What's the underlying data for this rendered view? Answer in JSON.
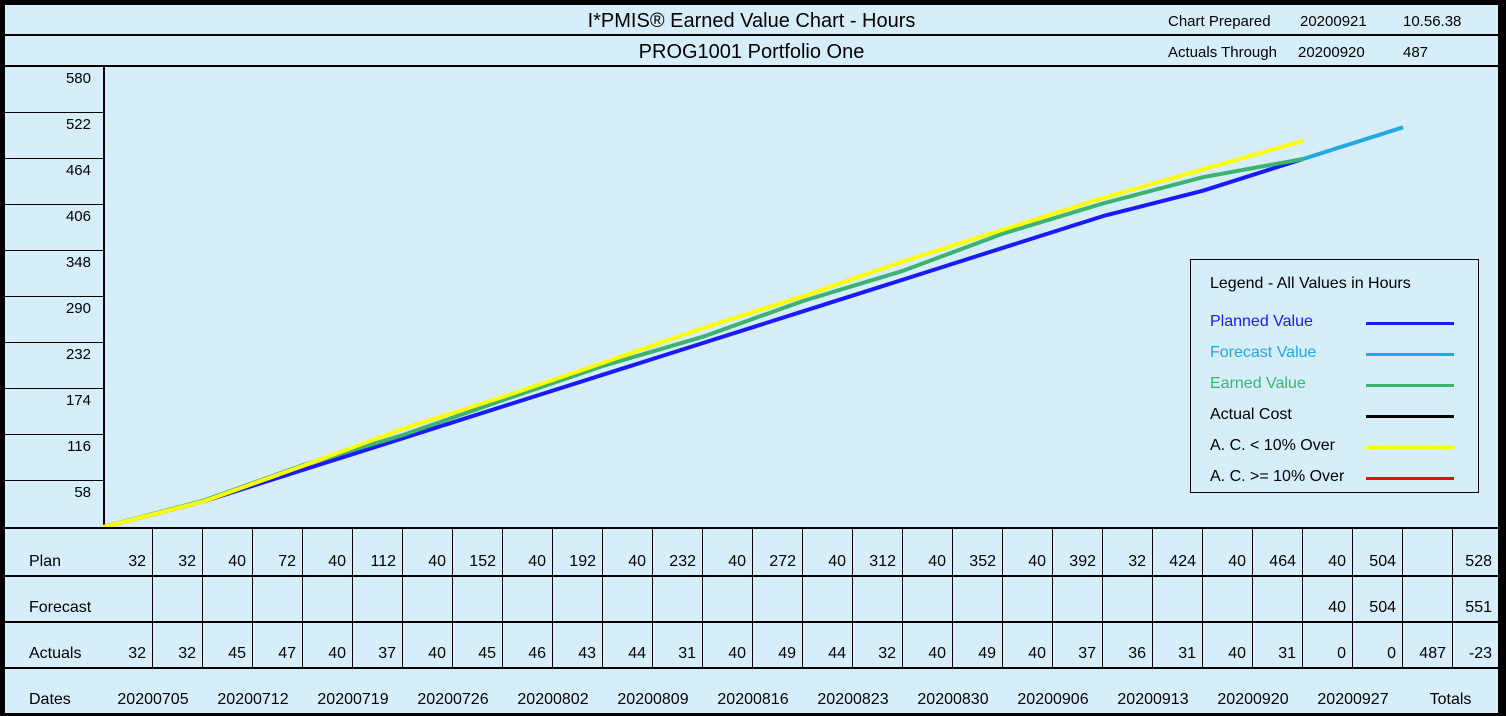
{
  "header": {
    "title": "I*PMIS® Earned Value Chart - Hours",
    "chart_prepared_label": "Chart Prepared",
    "chart_prepared_date": "20200921",
    "chart_prepared_time": "10.56.38",
    "subtitle": "PROG1001 Portfolio One",
    "actuals_through_label": "Actuals Through",
    "actuals_through_date": "20200920",
    "actuals_through_value": "487"
  },
  "legend": {
    "title": "Legend - All Values in Hours",
    "items": [
      {
        "label": "Planned Value",
        "color": "#1a1aff",
        "text_color": "#1a1aff"
      },
      {
        "label": "Forecast Value",
        "color": "#22a9e0",
        "text_color": "#22a9e0"
      },
      {
        "label": "Earned Value",
        "color": "#3cb371",
        "text_color": "#3cb371"
      },
      {
        "label": "Actual Cost",
        "color": "#000000",
        "text_color": "#000000"
      },
      {
        "label": "A. C. < 10% Over",
        "color": "#ffff00",
        "text_color": "#000000"
      },
      {
        "label": "A. C. >= 10% Over",
        "color": "#ff0000",
        "text_color": "#000000"
      }
    ]
  },
  "table": {
    "row_labels": {
      "plan": "Plan",
      "forecast": "Forecast",
      "actuals": "Actuals",
      "dates": "Dates"
    },
    "plan": [
      "32",
      "32",
      "40",
      "72",
      "40",
      "112",
      "40",
      "152",
      "40",
      "192",
      "40",
      "232",
      "40",
      "272",
      "40",
      "312",
      "40",
      "352",
      "40",
      "392",
      "32",
      "424",
      "40",
      "464",
      "40",
      "504",
      "",
      "528"
    ],
    "forecast": [
      "",
      "",
      "",
      "",
      "",
      "",
      "",
      "",
      "",
      "",
      "",
      "",
      "",
      "",
      "",
      "",
      "",
      "",
      "",
      "",
      "",
      "",
      "",
      "",
      "40",
      "504",
      "",
      "551"
    ],
    "actuals": [
      "32",
      "32",
      "45",
      "47",
      "40",
      "37",
      "40",
      "45",
      "46",
      "43",
      "44",
      "31",
      "40",
      "49",
      "44",
      "32",
      "40",
      "49",
      "40",
      "37",
      "36",
      "31",
      "40",
      "31",
      "0",
      "0",
      "487",
      "-23"
    ],
    "dates": [
      "20200705",
      "20200712",
      "20200719",
      "20200726",
      "20200802",
      "20200809",
      "20200816",
      "20200823",
      "20200830",
      "20200906",
      "20200913",
      "20200920",
      "20200927"
    ],
    "totals_label": "Totals"
  },
  "chart_data": {
    "type": "line",
    "ylim": [
      0,
      580
    ],
    "yticks": [
      "58",
      "116",
      "174",
      "232",
      "290",
      "348",
      "406",
      "464",
      "522",
      "580"
    ],
    "x": [
      "20200628",
      "20200705",
      "20200712",
      "20200719",
      "20200726",
      "20200802",
      "20200809",
      "20200816",
      "20200823",
      "20200830",
      "20200906",
      "20200913",
      "20200920",
      "20200927"
    ],
    "series": [
      {
        "name": "Planned Value",
        "color": "#1a1aff",
        "values": [
          0,
          32,
          72,
          112,
          152,
          192,
          232,
          272,
          312,
          352,
          392,
          424,
          464,
          null
        ]
      },
      {
        "name": "Forecast Value",
        "color": "#22a9e0",
        "values": [
          null,
          null,
          null,
          null,
          null,
          null,
          null,
          null,
          null,
          null,
          null,
          null,
          464,
          504
        ]
      },
      {
        "name": "Earned Value",
        "color": "#3cb371",
        "values": [
          0,
          33,
          78,
          116,
          160,
          203,
          240,
          285,
          323,
          370,
          408,
          441,
          464,
          null
        ]
      },
      {
        "name": "A. C. < 10% Over",
        "color": "#ffff00",
        "values": [
          0,
          32,
          77,
          124,
          164,
          207,
          251,
          291,
          335,
          375,
          415,
          451,
          487,
          null
        ]
      }
    ]
  }
}
